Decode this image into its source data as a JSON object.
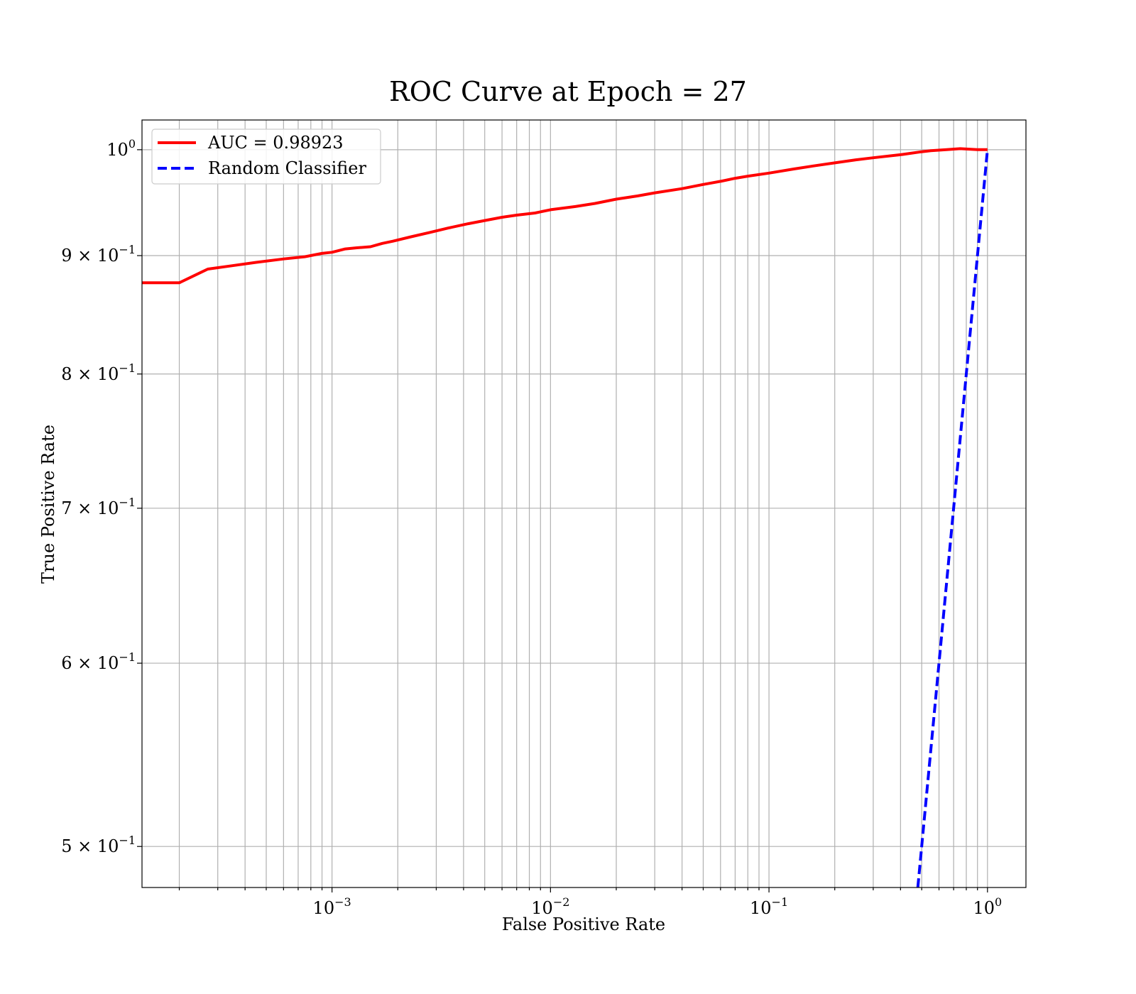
{
  "chart_data": {
    "type": "line",
    "title": "ROC Curve at Epoch = 27",
    "xlabel": "False Positive Rate",
    "ylabel": "True Positive Rate",
    "xscale": "log",
    "yscale": "log",
    "xlim": [
      0.000135,
      1.5
    ],
    "ylim": [
      0.48,
      1.03
    ],
    "grid": true,
    "grid_which": "both",
    "legend_position": "top-left",
    "x_ticks": [
      {
        "value": 0.001,
        "base": "10",
        "exp": "−3"
      },
      {
        "value": 0.01,
        "base": "10",
        "exp": "−2"
      },
      {
        "value": 0.1,
        "base": "10",
        "exp": "−1"
      },
      {
        "value": 1,
        "base": "10",
        "exp": "0"
      }
    ],
    "y_ticks": [
      {
        "value": 1.0,
        "base": "10",
        "exp": "0"
      },
      {
        "value": 0.9,
        "base": "9 × 10",
        "exp": "−1"
      },
      {
        "value": 0.8,
        "base": "8 × 10",
        "exp": "−1"
      },
      {
        "value": 0.7,
        "base": "7 × 10",
        "exp": "−1"
      },
      {
        "value": 0.6,
        "base": "6 × 10",
        "exp": "−1"
      },
      {
        "value": 0.5,
        "base": "5 × 10",
        "exp": "−1"
      }
    ],
    "series": [
      {
        "name": "AUC = 0.98923",
        "color": "#ff0000",
        "style": "solid",
        "x": [
          0.000135,
          0.0002,
          0.00027,
          0.00035,
          0.00045,
          0.0006,
          0.00075,
          0.0009,
          0.001,
          0.00105,
          0.00115,
          0.0013,
          0.0015,
          0.0017,
          0.0019,
          0.0023,
          0.0028,
          0.0034,
          0.0042,
          0.005,
          0.006,
          0.007,
          0.0085,
          0.01,
          0.013,
          0.016,
          0.02,
          0.025,
          0.03,
          0.04,
          0.05,
          0.06,
          0.07,
          0.08,
          0.1,
          0.13,
          0.16,
          0.2,
          0.25,
          0.3,
          0.4,
          0.5,
          0.55,
          0.65,
          0.75,
          0.9,
          1.0
        ],
        "y": [
          0.876,
          0.876,
          0.888,
          0.891,
          0.894,
          0.897,
          0.899,
          0.902,
          0.903,
          0.904,
          0.906,
          0.907,
          0.908,
          0.911,
          0.913,
          0.917,
          0.921,
          0.925,
          0.929,
          0.932,
          0.935,
          0.937,
          0.939,
          0.942,
          0.945,
          0.948,
          0.952,
          0.955,
          0.958,
          0.962,
          0.966,
          0.969,
          0.972,
          0.974,
          0.977,
          0.981,
          0.984,
          0.987,
          0.99,
          0.992,
          0.995,
          0.998,
          0.999,
          1.0,
          1.001,
          1.0,
          1.0
        ]
      },
      {
        "name": "Random Classifier",
        "color": "#0000ff",
        "style": "dashed",
        "x": [
          0.48,
          1.0
        ],
        "y": [
          0.48,
          1.0
        ]
      }
    ]
  }
}
